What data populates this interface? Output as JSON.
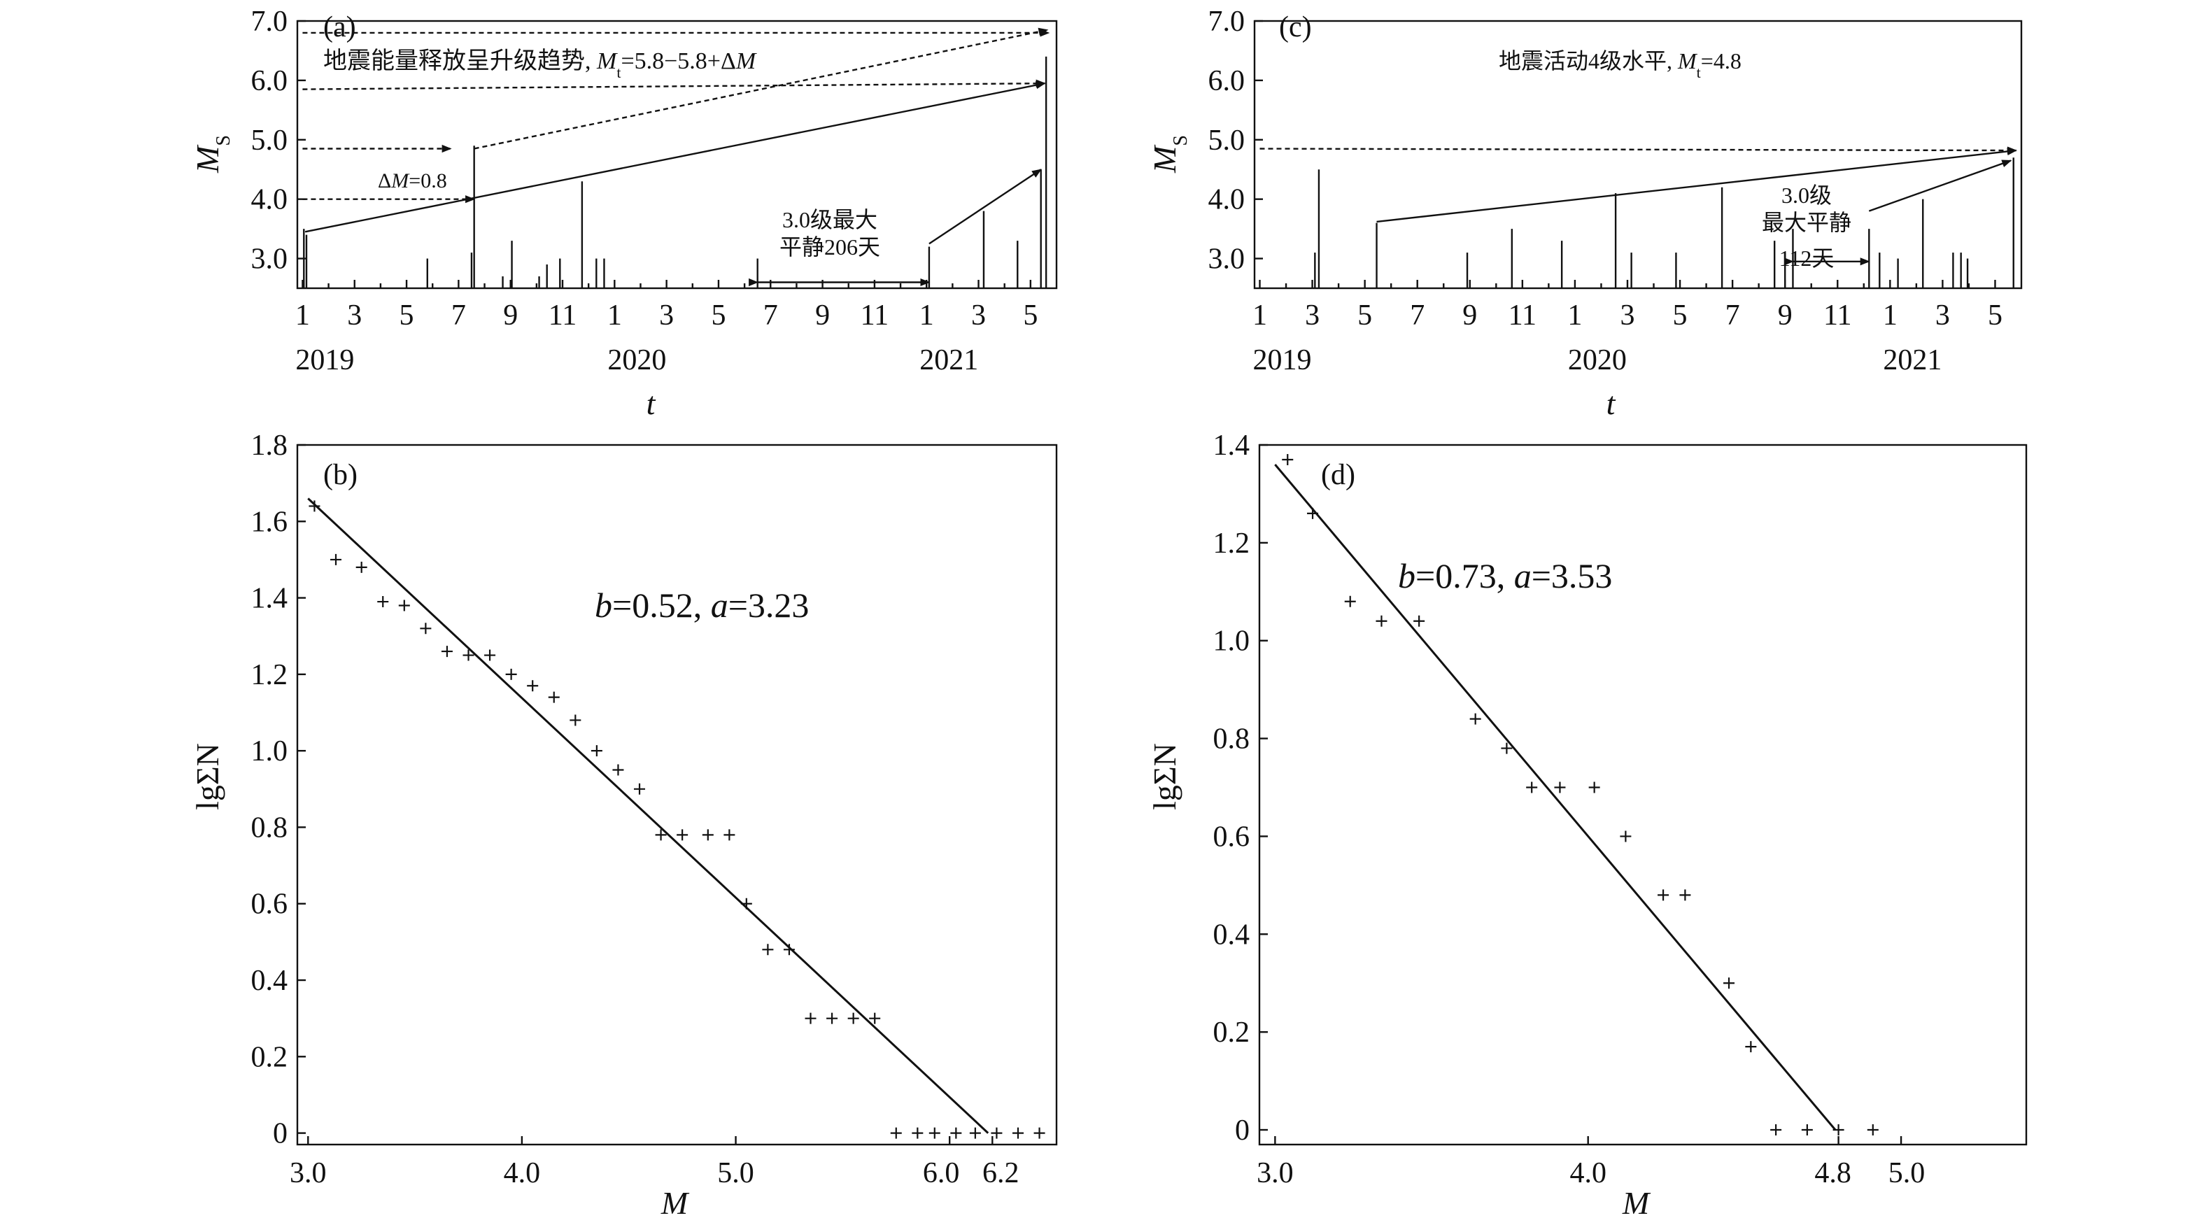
{
  "chart_data": [
    {
      "panel": "(a)",
      "type": "bar",
      "ylabel_main": "M",
      "ylabel_sub": "S",
      "xlabel": "t",
      "ylim": [
        2.5,
        7.0
      ],
      "yticks": [
        "7.0",
        "6.0",
        "5.0",
        "4.0",
        "3.0"
      ],
      "ytick_values": [
        7.0,
        6.0,
        5.0,
        4.0,
        3.0
      ],
      "xtick_labels": [
        "1",
        "3",
        "5",
        "7",
        "9",
        "11",
        "1",
        "3",
        "5",
        "7",
        "9",
        "11",
        "1",
        "3",
        "5"
      ],
      "xtick_months": [
        0,
        2,
        4,
        6,
        8,
        10,
        12,
        14,
        16,
        18,
        20,
        22,
        24,
        26,
        28
      ],
      "years": [
        {
          "label": "2019",
          "month": 0
        },
        {
          "label": "2020",
          "month": 12
        },
        {
          "label": "2021",
          "month": 24
        }
      ],
      "xlim": [
        -0.2,
        29.0
      ],
      "events": [
        {
          "t": 0.05,
          "m": 3.5
        },
        {
          "t": 0.15,
          "m": 3.4
        },
        {
          "t": 4.8,
          "m": 3.0
        },
        {
          "t": 6.5,
          "m": 3.1
        },
        {
          "t": 6.6,
          "m": 4.9
        },
        {
          "t": 7.7,
          "m": 2.7
        },
        {
          "t": 8.05,
          "m": 3.3
        },
        {
          "t": 9.1,
          "m": 2.7
        },
        {
          "t": 9.4,
          "m": 2.9
        },
        {
          "t": 9.9,
          "m": 3.0
        },
        {
          "t": 10.75,
          "m": 4.3
        },
        {
          "t": 11.3,
          "m": 3.0
        },
        {
          "t": 11.6,
          "m": 3.0
        },
        {
          "t": 17.5,
          "m": 3.0
        },
        {
          "t": 24.1,
          "m": 3.2
        },
        {
          "t": 26.2,
          "m": 3.8
        },
        {
          "t": 27.5,
          "m": 3.3
        },
        {
          "t": 28.4,
          "m": 4.5
        },
        {
          "t": 28.6,
          "m": 6.4
        }
      ],
      "trend_line": [
        [
          0.1,
          3.45
        ],
        [
          28.55,
          5.95
        ]
      ],
      "dashed_levels": [
        {
          "from": [
            0.0,
            6.8
          ],
          "to": [
            28.7,
            6.8
          ]
        },
        {
          "from": [
            0.0,
            5.85
          ],
          "to": [
            28.55,
            5.95
          ]
        },
        {
          "from": [
            0.0,
            4.85
          ],
          "to": [
            5.7,
            4.85
          ]
        },
        {
          "from": [
            0.0,
            4.0
          ],
          "to": [
            6.6,
            4.0
          ]
        },
        {
          "from": [
            6.6,
            4.85
          ],
          "to": [
            28.65,
            6.85
          ]
        }
      ],
      "quiet_arrow": {
        "from": 17.5,
        "to": 24.1,
        "m": 2.6
      },
      "quiet_pointer": [
        [
          24.1,
          3.25
        ],
        [
          28.4,
          4.5
        ]
      ],
      "annotations": {
        "panel_label": "(a)",
        "trend_prefix": "地震能量释放呈升级趋势, ",
        "trend_M": "M",
        "trend_t": "t",
        "trend_suffix": "=5.8−5.8+Δ",
        "trend_M2": "M",
        "delta_prefix": "Δ",
        "delta_M": "M",
        "delta_suffix": "=0.8",
        "quiet_line1": "3.0级最大",
        "quiet_line2": "平静206天"
      }
    },
    {
      "panel": "(c)",
      "type": "bar",
      "ylabel_main": "M",
      "ylabel_sub": "S",
      "xlabel": "t",
      "ylim": [
        2.5,
        7.0
      ],
      "yticks": [
        "7.0",
        "6.0",
        "5.0",
        "4.0",
        "3.0"
      ],
      "ytick_values": [
        7.0,
        6.0,
        5.0,
        4.0,
        3.0
      ],
      "xtick_labels": [
        "1",
        "3",
        "5",
        "7",
        "9",
        "11",
        "1",
        "3",
        "5",
        "7",
        "9",
        "11",
        "1",
        "3",
        "5"
      ],
      "xtick_months": [
        0,
        2,
        4,
        6,
        8,
        10,
        12,
        14,
        16,
        18,
        20,
        22,
        24,
        26,
        28
      ],
      "years": [
        {
          "label": "2019",
          "month": 0
        },
        {
          "label": "2020",
          "month": 12
        },
        {
          "label": "2021",
          "month": 24
        }
      ],
      "xlim": [
        -0.2,
        29.0
      ],
      "events": [
        {
          "t": 2.1,
          "m": 3.1
        },
        {
          "t": 2.25,
          "m": 4.5
        },
        {
          "t": 4.45,
          "m": 3.6
        },
        {
          "t": 7.9,
          "m": 3.1
        },
        {
          "t": 9.6,
          "m": 3.5
        },
        {
          "t": 11.5,
          "m": 3.3
        },
        {
          "t": 13.55,
          "m": 4.1
        },
        {
          "t": 14.15,
          "m": 3.1
        },
        {
          "t": 15.85,
          "m": 3.1
        },
        {
          "t": 17.6,
          "m": 4.2
        },
        {
          "t": 19.6,
          "m": 3.3
        },
        {
          "t": 20.0,
          "m": 3.1
        },
        {
          "t": 20.3,
          "m": 3.5
        },
        {
          "t": 23.2,
          "m": 3.5
        },
        {
          "t": 23.6,
          "m": 3.1
        },
        {
          "t": 24.3,
          "m": 3.0
        },
        {
          "t": 25.25,
          "m": 4.0
        },
        {
          "t": 26.4,
          "m": 3.1
        },
        {
          "t": 26.7,
          "m": 3.1
        },
        {
          "t": 26.95,
          "m": 3.0
        },
        {
          "t": 28.7,
          "m": 4.7
        }
      ],
      "trend_line": [
        [
          4.45,
          3.62
        ],
        [
          28.8,
          4.82
        ]
      ],
      "dashed_levels": [
        {
          "from": [
            0.0,
            4.85
          ],
          "to": [
            28.8,
            4.82
          ]
        }
      ],
      "quiet_arrow": {
        "from": 20.3,
        "to": 23.2,
        "m": 2.95
      },
      "quiet_pointer": [
        [
          23.2,
          3.8
        ],
        [
          28.6,
          4.65
        ]
      ],
      "annotations": {
        "panel_label": "(c)",
        "level_prefix": "地震活动4级水平, ",
        "level_M": "M",
        "level_t": "t",
        "level_suffix": "=4.8",
        "quiet_line1": "3.0级",
        "quiet_line2": "最大平静",
        "quiet_line3": "112天"
      }
    },
    {
      "panel": "(b)",
      "type": "scatter",
      "xlabel": "M",
      "ylabel": "lgΣN",
      "xlim": [
        2.95,
        6.5
      ],
      "ylim": [
        -0.03,
        1.8
      ],
      "xticks": [
        {
          "label": "3.0",
          "v": 3.0,
          "dx": 0
        },
        {
          "label": "4.0",
          "v": 4.0,
          "dx": 0
        },
        {
          "label": "5.0",
          "v": 5.0,
          "dx": 0
        },
        {
          "label": "6.0",
          "v": 6.0,
          "dx": -12
        },
        {
          "label": "6.2",
          "v": 6.2,
          "dx": 12
        }
      ],
      "yticks": [
        "1.8",
        "1.6",
        "1.4",
        "1.2",
        "1.0",
        "0.8",
        "0.6",
        "0.4",
        "0.2",
        "0"
      ],
      "ytick_values": [
        1.8,
        1.6,
        1.4,
        1.2,
        1.0,
        0.8,
        0.6,
        0.4,
        0.2,
        0.0
      ],
      "points": [
        [
          3.03,
          1.64
        ],
        [
          3.13,
          1.5
        ],
        [
          3.25,
          1.48
        ],
        [
          3.35,
          1.39
        ],
        [
          3.45,
          1.38
        ],
        [
          3.55,
          1.32
        ],
        [
          3.65,
          1.26
        ],
        [
          3.75,
          1.25
        ],
        [
          3.85,
          1.25
        ],
        [
          3.95,
          1.2
        ],
        [
          4.05,
          1.17
        ],
        [
          4.15,
          1.14
        ],
        [
          4.25,
          1.08
        ],
        [
          4.35,
          1.0
        ],
        [
          4.45,
          0.95
        ],
        [
          4.55,
          0.9
        ],
        [
          4.65,
          0.78
        ],
        [
          4.75,
          0.78
        ],
        [
          4.87,
          0.78
        ],
        [
          4.97,
          0.78
        ],
        [
          5.05,
          0.6
        ],
        [
          5.15,
          0.48
        ],
        [
          5.25,
          0.48
        ],
        [
          5.35,
          0.3
        ],
        [
          5.45,
          0.3
        ],
        [
          5.55,
          0.3
        ],
        [
          5.65,
          0.3
        ],
        [
          5.75,
          0.0
        ],
        [
          5.85,
          0.0
        ],
        [
          5.93,
          0.0
        ],
        [
          6.03,
          0.0
        ],
        [
          6.12,
          0.0
        ],
        [
          6.22,
          0.0
        ],
        [
          6.32,
          0.0
        ],
        [
          6.42,
          0.0
        ]
      ],
      "fit_line": [
        [
          3.0,
          1.66
        ],
        [
          6.18,
          0.0
        ]
      ],
      "panel_label": "(b)",
      "eq_b": "b",
      "eq_b_val": "=0.52, ",
      "eq_a": "a",
      "eq_a_val": "=3.23"
    },
    {
      "panel": "(d)",
      "type": "scatter",
      "xlabel": "M",
      "ylabel": "lgΣN",
      "xlim": [
        2.95,
        5.4
      ],
      "ylim": [
        -0.03,
        1.4
      ],
      "xticks": [
        {
          "label": "3.0",
          "v": 3.0,
          "dx": 0
        },
        {
          "label": "4.0",
          "v": 4.0,
          "dx": 0
        },
        {
          "label": "4.8",
          "v": 4.8,
          "dx": -8
        },
        {
          "label": "5.0",
          "v": 5.0,
          "dx": 8
        }
      ],
      "yticks": [
        "1.4",
        "1.2",
        "1.0",
        "0.8",
        "0.6",
        "0.4",
        "0.2",
        "0"
      ],
      "ytick_values": [
        1.4,
        1.2,
        1.0,
        0.8,
        0.6,
        0.4,
        0.2,
        0.0
      ],
      "points": [
        [
          3.04,
          1.37
        ],
        [
          3.12,
          1.26
        ],
        [
          3.24,
          1.08
        ],
        [
          3.34,
          1.04
        ],
        [
          3.46,
          1.04
        ],
        [
          3.64,
          0.84
        ],
        [
          3.74,
          0.78
        ],
        [
          3.82,
          0.7
        ],
        [
          3.91,
          0.7
        ],
        [
          4.02,
          0.7
        ],
        [
          4.12,
          0.6
        ],
        [
          4.24,
          0.48
        ],
        [
          4.31,
          0.48
        ],
        [
          4.45,
          0.3
        ],
        [
          4.52,
          0.17
        ],
        [
          4.6,
          0.0
        ],
        [
          4.7,
          0.0
        ],
        [
          4.8,
          0.0
        ],
        [
          4.91,
          0.0
        ]
      ],
      "fit_line": [
        [
          3.0,
          1.36
        ],
        [
          4.79,
          0.0
        ]
      ],
      "panel_label": "(d)",
      "eq_b": "b",
      "eq_b_val": "=0.73, ",
      "eq_a": "a",
      "eq_a_val": "=3.53"
    }
  ]
}
